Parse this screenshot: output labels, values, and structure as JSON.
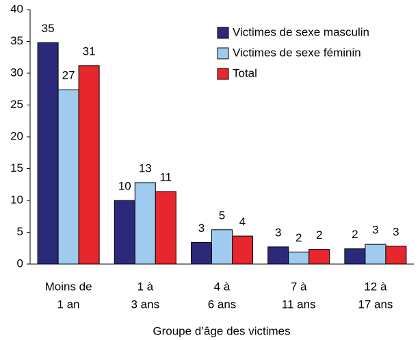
{
  "chart_data": {
    "type": "bar",
    "x_label": "Groupe d’âge des victimes",
    "categories": [
      [
        "Moins de",
        "1 an"
      ],
      [
        "1 à",
        "3 ans"
      ],
      [
        "4 à",
        "6 ans"
      ],
      [
        "7 à",
        "11 ans"
      ],
      [
        "12 à",
        "17 ans"
      ]
    ],
    "series": [
      {
        "name": "Victimes de sexe masculin",
        "color": "#2b2a7a",
        "values": [
          34.8,
          10.0,
          3.4,
          2.7,
          2.4
        ],
        "value_labels": [
          "35",
          "10",
          "3",
          "3",
          "2"
        ]
      },
      {
        "name": "Victimes de sexe féminin",
        "color": "#9fcbef",
        "values": [
          27.4,
          12.8,
          5.4,
          1.9,
          3.1
        ],
        "value_labels": [
          "27",
          "13",
          "5",
          "2",
          "3"
        ]
      },
      {
        "name": "Total",
        "color": "#e8262d",
        "values": [
          31.2,
          11.4,
          4.4,
          2.3,
          2.8
        ],
        "value_labels": [
          "31",
          "11",
          "4",
          "2",
          "3"
        ]
      }
    ],
    "ylim": [
      0,
      40
    ],
    "yticks": [
      0,
      5,
      10,
      15,
      20,
      25,
      30,
      35,
      40
    ],
    "legend": "upper right"
  }
}
